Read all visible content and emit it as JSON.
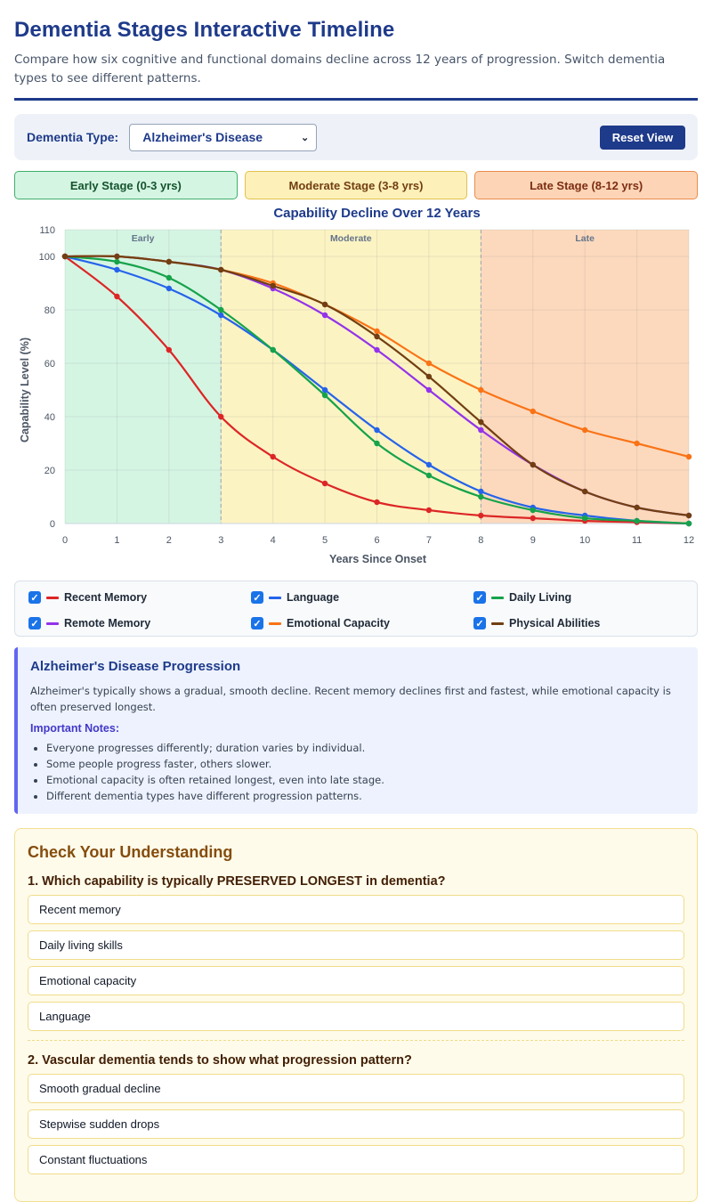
{
  "header": {
    "title": "Dementia Stages Interactive Timeline",
    "subtitle": "Compare how six cognitive and functional domains decline across 12 years of progression. Switch dementia types to see different patterns."
  },
  "controls": {
    "type_label": "Dementia Type:",
    "selected_type": "Alzheimer's Disease",
    "reset_label": "Reset View"
  },
  "stages": [
    {
      "label": "Early Stage (0-3 yrs)"
    },
    {
      "label": "Moderate Stage (3-8 yrs)"
    },
    {
      "label": "Late Stage (8-12 yrs)"
    }
  ],
  "legend": [
    {
      "label": "Recent Memory",
      "color": "#dc2626",
      "checked": true
    },
    {
      "label": "Language",
      "color": "#2563eb",
      "checked": true
    },
    {
      "label": "Daily Living",
      "color": "#16a34a",
      "checked": true
    },
    {
      "label": "Remote Memory",
      "color": "#9333ea",
      "checked": true
    },
    {
      "label": "Emotional Capacity",
      "color": "#f97316",
      "checked": true
    },
    {
      "label": "Physical Abilities",
      "color": "#713f12",
      "checked": true
    }
  ],
  "chart_data": {
    "type": "line",
    "title": "Capability Decline Over 12 Years",
    "xlabel": "Years Since Onset",
    "ylabel": "Capability Level (%)",
    "x": [
      0,
      1,
      2,
      3,
      4,
      5,
      6,
      7,
      8,
      9,
      10,
      11,
      12
    ],
    "xlim": [
      0,
      12
    ],
    "ylim": [
      0,
      110
    ],
    "yticks": [
      0,
      20,
      40,
      60,
      80,
      100,
      110
    ],
    "grid": true,
    "stage_bands": [
      {
        "label": "Early",
        "from": 0,
        "to": 3,
        "color": "#d5f5e3"
      },
      {
        "label": "Moderate",
        "from": 3,
        "to": 8,
        "color": "#fcf3c3"
      },
      {
        "label": "Late",
        "from": 8,
        "to": 12,
        "color": "#fcd9bd"
      }
    ],
    "series": [
      {
        "name": "Recent Memory",
        "color": "#dc2626",
        "values": [
          100,
          85,
          65,
          40,
          25,
          15,
          8,
          5,
          3,
          2,
          1,
          0.5,
          0
        ]
      },
      {
        "name": "Language",
        "color": "#2563eb",
        "values": [
          100,
          95,
          88,
          78,
          65,
          50,
          35,
          22,
          12,
          6,
          3,
          1,
          0
        ]
      },
      {
        "name": "Daily Living",
        "color": "#16a34a",
        "values": [
          100,
          98,
          92,
          80,
          65,
          48,
          30,
          18,
          10,
          5,
          2,
          1,
          0
        ]
      },
      {
        "name": "Remote Memory",
        "color": "#9333ea",
        "values": [
          100,
          100,
          98,
          95,
          88,
          78,
          65,
          50,
          35,
          22,
          12,
          6,
          3
        ]
      },
      {
        "name": "Emotional Capacity",
        "color": "#f97316",
        "values": [
          100,
          100,
          98,
          95,
          90,
          82,
          72,
          60,
          50,
          42,
          35,
          30,
          25
        ]
      },
      {
        "name": "Physical Abilities",
        "color": "#713f12",
        "values": [
          100,
          100,
          98,
          95,
          89,
          82,
          70,
          55,
          38,
          22,
          12,
          6,
          3
        ]
      }
    ]
  },
  "info": {
    "title": "Alzheimer's Disease Progression",
    "description": "Alzheimer's typically shows a gradual, smooth decline. Recent memory declines first and fastest, while emotional capacity is often preserved longest.",
    "notes_title": "Important Notes:",
    "notes": [
      "Everyone progresses differently; duration varies by individual.",
      "Some people progress faster, others slower.",
      "Emotional capacity is often retained longest, even into late stage.",
      "Different dementia types have different progression patterns."
    ]
  },
  "quiz": {
    "title": "Check Your Understanding",
    "questions": [
      {
        "question": "1. Which capability is typically PRESERVED LONGEST in dementia?",
        "options": [
          "Recent memory",
          "Daily living skills",
          "Emotional capacity",
          "Language"
        ]
      },
      {
        "question": "2. Vascular dementia tends to show what progression pattern?",
        "options": [
          "Smooth gradual decline",
          "Stepwise sudden drops",
          "Constant fluctuations"
        ]
      }
    ]
  }
}
